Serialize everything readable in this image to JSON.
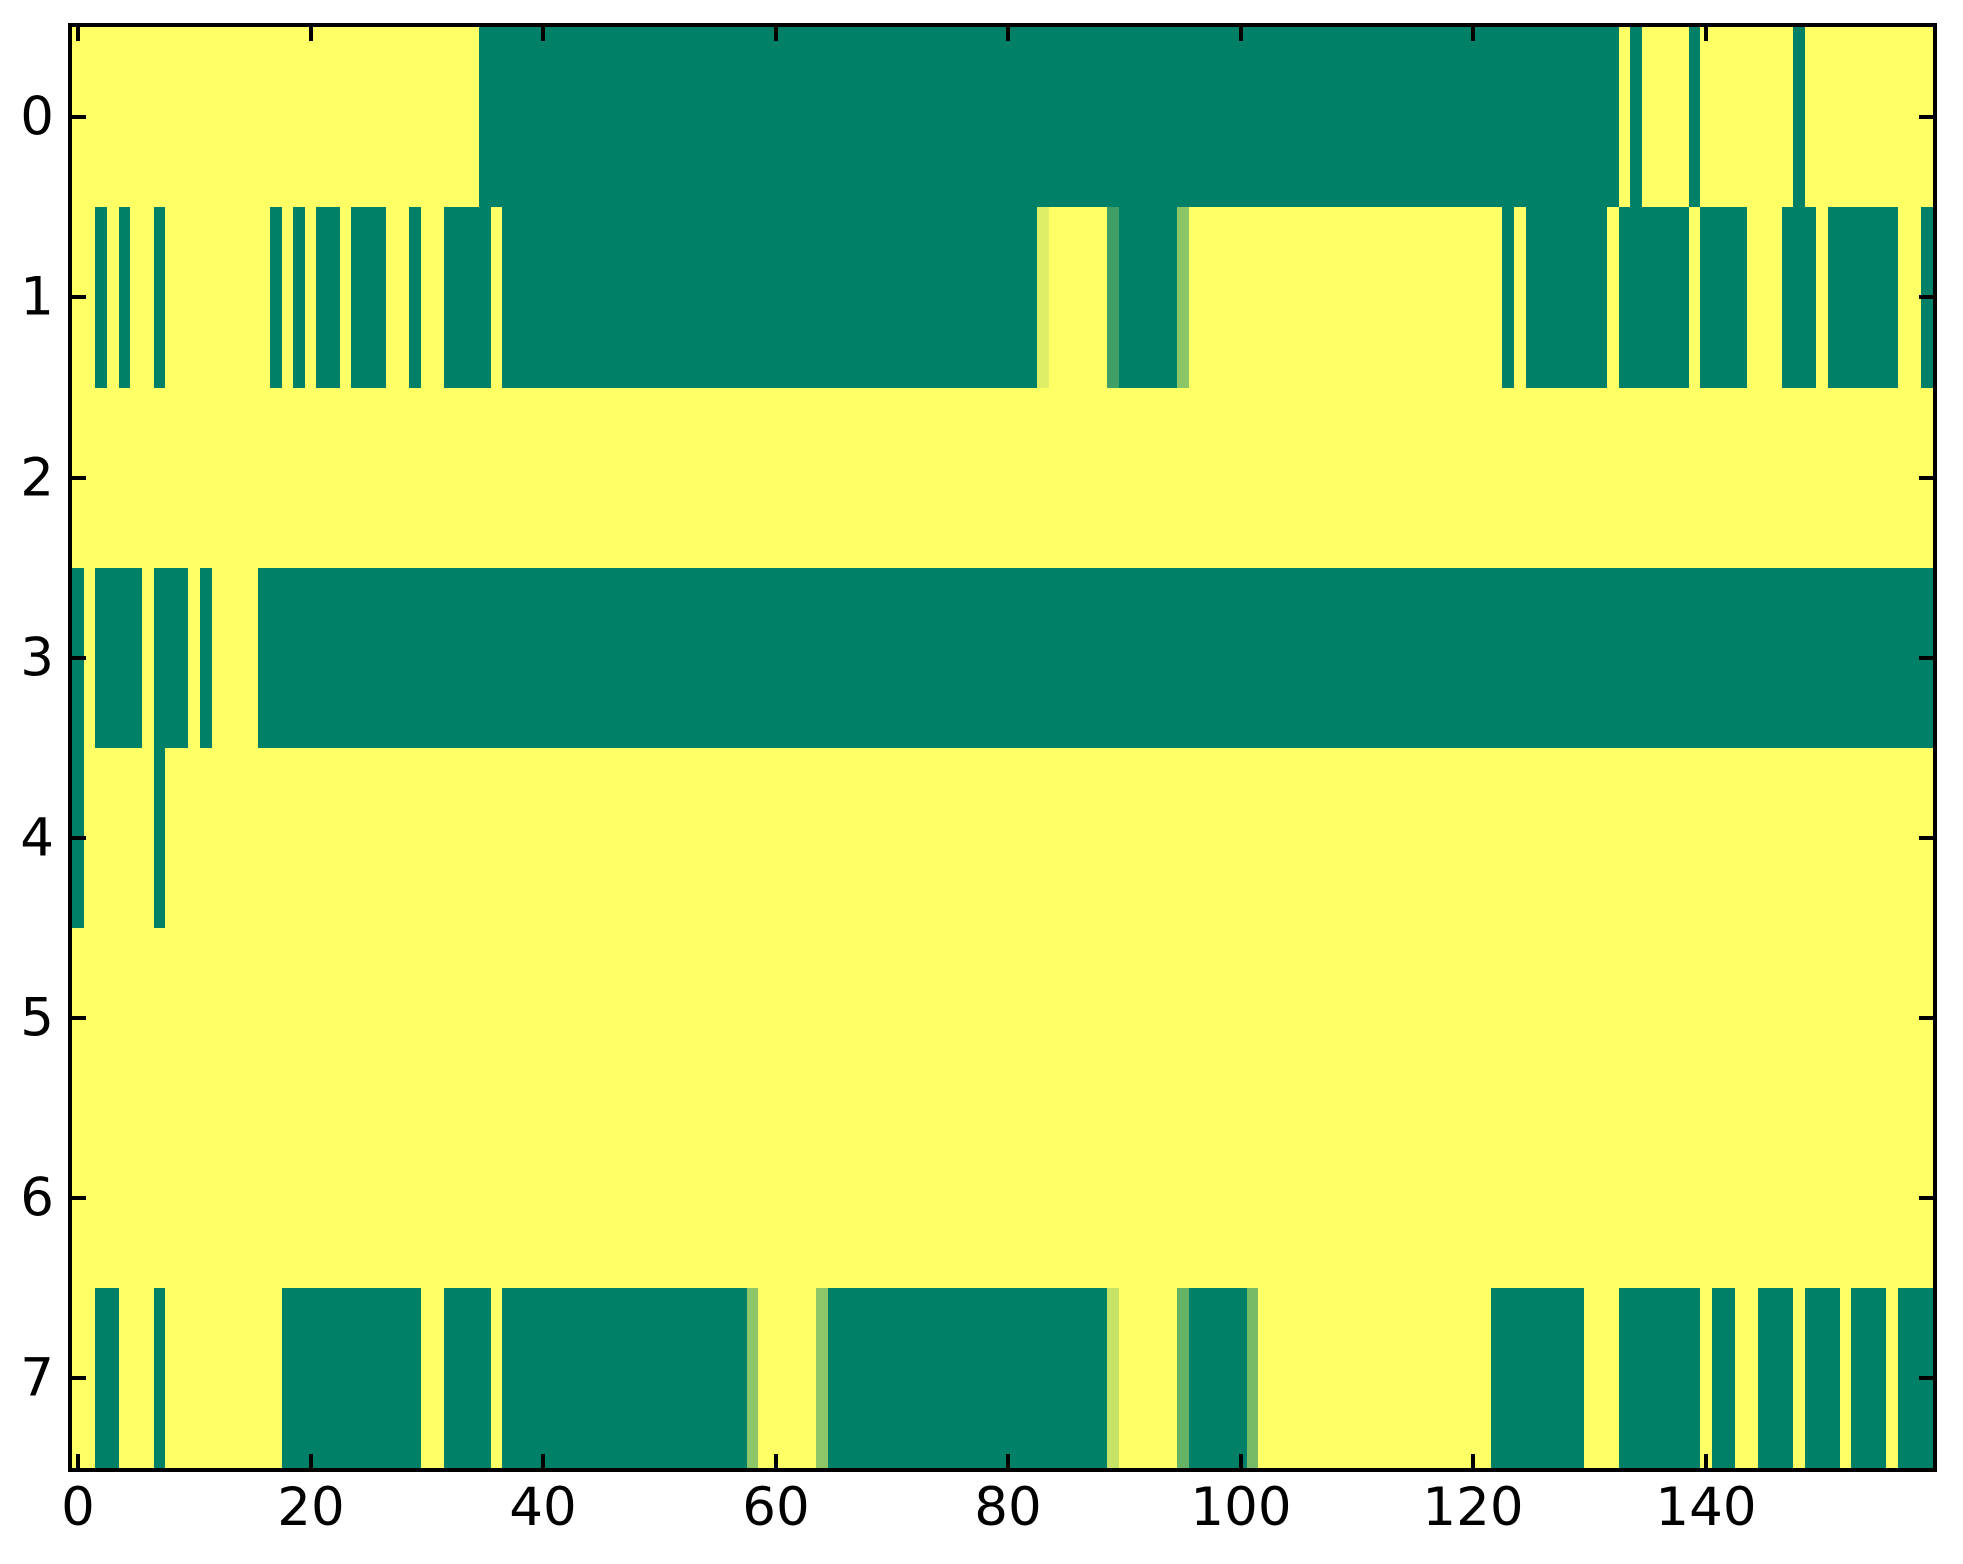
{
  "figure": {
    "background": "#ffffff",
    "axes_color": "#000000"
  },
  "chart_data": {
    "type": "heatmap",
    "title": "",
    "xlabel": "",
    "ylabel": "",
    "n_rows": 8,
    "n_cols": 160,
    "x_extent": [
      -0.5,
      159.5
    ],
    "y_extent": [
      -0.5,
      7.5
    ],
    "grid": false,
    "legend": "none",
    "xtick_labels": [
      "0",
      "20",
      "40",
      "60",
      "80",
      "100",
      "120",
      "140"
    ],
    "xtick_values": [
      0,
      20,
      40,
      60,
      80,
      100,
      120,
      140
    ],
    "ytick_labels": [
      "0",
      "1",
      "2",
      "3",
      "4",
      "5",
      "6",
      "7"
    ],
    "ytick_values": [
      0,
      1,
      2,
      3,
      4,
      5,
      6,
      7
    ],
    "colormap": {
      "name": "summer",
      "low_color": "#008066",
      "high_color": "#ffff66",
      "value_convention": "segments are [first_col, last_col, value]; value 0 = teal green, 1 = yellow, fractional = intermediate light green"
    },
    "rows": [
      {
        "y": 0,
        "segments": [
          [
            0,
            34,
            1
          ],
          [
            35,
            132,
            0
          ],
          [
            133,
            133,
            1
          ],
          [
            134,
            134,
            0
          ],
          [
            135,
            138,
            1
          ],
          [
            139,
            139,
            0
          ],
          [
            140,
            147,
            1
          ],
          [
            148,
            148,
            0
          ],
          [
            149,
            159,
            1
          ]
        ]
      },
      {
        "y": 1,
        "segments": [
          [
            0,
            1,
            1
          ],
          [
            2,
            2,
            0
          ],
          [
            3,
            3,
            1
          ],
          [
            4,
            4,
            0
          ],
          [
            5,
            6,
            1
          ],
          [
            7,
            7,
            0
          ],
          [
            8,
            16,
            1
          ],
          [
            17,
            17,
            0
          ],
          [
            18,
            18,
            1
          ],
          [
            19,
            19,
            0
          ],
          [
            20,
            20,
            1
          ],
          [
            21,
            22,
            0
          ],
          [
            23,
            23,
            1
          ],
          [
            24,
            26,
            0
          ],
          [
            27,
            28,
            1
          ],
          [
            29,
            29,
            0
          ],
          [
            30,
            31,
            1
          ],
          [
            32,
            35,
            0
          ],
          [
            36,
            36,
            1
          ],
          [
            37,
            82,
            0
          ],
          [
            83,
            83,
            0.87
          ],
          [
            84,
            88,
            1
          ],
          [
            89,
            89,
            0.25
          ],
          [
            90,
            94,
            0
          ],
          [
            95,
            95,
            0.55
          ],
          [
            96,
            122,
            1
          ],
          [
            123,
            123,
            0
          ],
          [
            124,
            124,
            1
          ],
          [
            125,
            131,
            0
          ],
          [
            132,
            132,
            1
          ],
          [
            133,
            138,
            0
          ],
          [
            139,
            139,
            1
          ],
          [
            140,
            143,
            0
          ],
          [
            144,
            146,
            1
          ],
          [
            147,
            149,
            0
          ],
          [
            150,
            150,
            1
          ],
          [
            151,
            156,
            0
          ],
          [
            157,
            158,
            1
          ],
          [
            159,
            159,
            0
          ]
        ]
      },
      {
        "y": 2,
        "segments": [
          [
            0,
            159,
            1
          ]
        ]
      },
      {
        "y": 3,
        "segments": [
          [
            0,
            0,
            0
          ],
          [
            1,
            1,
            1
          ],
          [
            2,
            5,
            0
          ],
          [
            6,
            6,
            1
          ],
          [
            7,
            9,
            0
          ],
          [
            10,
            10,
            1
          ],
          [
            11,
            11,
            0
          ],
          [
            12,
            15,
            1
          ],
          [
            16,
            159,
            0
          ]
        ]
      },
      {
        "y": 4,
        "segments": [
          [
            0,
            0,
            0
          ],
          [
            1,
            6,
            1
          ],
          [
            7,
            7,
            0
          ],
          [
            8,
            159,
            1
          ]
        ]
      },
      {
        "y": 5,
        "segments": [
          [
            0,
            159,
            1
          ]
        ]
      },
      {
        "y": 6,
        "segments": [
          [
            0,
            159,
            1
          ]
        ]
      },
      {
        "y": 7,
        "segments": [
          [
            0,
            1,
            1
          ],
          [
            2,
            3,
            0
          ],
          [
            4,
            6,
            1
          ],
          [
            7,
            7,
            0
          ],
          [
            8,
            17,
            1
          ],
          [
            18,
            29,
            0
          ],
          [
            30,
            31,
            1
          ],
          [
            32,
            35,
            0
          ],
          [
            36,
            36,
            1
          ],
          [
            37,
            57,
            0
          ],
          [
            58,
            58,
            0.55
          ],
          [
            59,
            63,
            1
          ],
          [
            64,
            64,
            0.55
          ],
          [
            65,
            88,
            0
          ],
          [
            89,
            89,
            0.78
          ],
          [
            90,
            94,
            1
          ],
          [
            95,
            95,
            0.4
          ],
          [
            96,
            100,
            0
          ],
          [
            101,
            101,
            0.47
          ],
          [
            102,
            121,
            1
          ],
          [
            122,
            129,
            0
          ],
          [
            130,
            132,
            1
          ],
          [
            133,
            139,
            0
          ],
          [
            140,
            140,
            1
          ],
          [
            141,
            142,
            0
          ],
          [
            143,
            144,
            1
          ],
          [
            145,
            147,
            0
          ],
          [
            148,
            148,
            1
          ],
          [
            149,
            151,
            0
          ],
          [
            152,
            152,
            1
          ],
          [
            153,
            155,
            0
          ],
          [
            156,
            156,
            1
          ],
          [
            157,
            159,
            0
          ]
        ]
      }
    ]
  }
}
